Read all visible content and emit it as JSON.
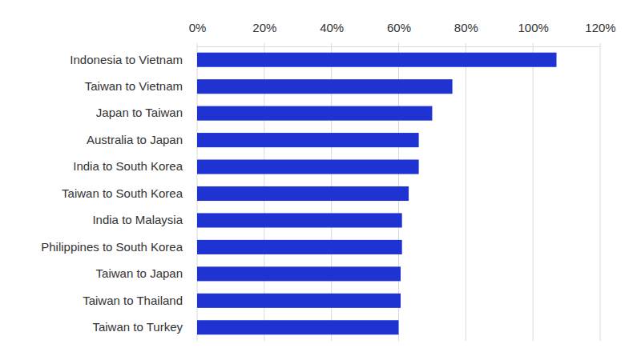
{
  "chart_data": {
    "type": "bar",
    "orientation": "horizontal",
    "grid": true,
    "color": "#1f33d3",
    "categories": [
      "Indonesia to Vietnam",
      "Taiwan to Vietnam",
      "Japan to Taiwan",
      "Australia to Japan",
      "India to South Korea",
      "Taiwan to South Korea",
      "India to Malaysia",
      "Philippines to South Korea",
      "Taiwan to Japan",
      "Taiwan to Thailand",
      "Taiwan to Turkey"
    ],
    "values": [
      107,
      76,
      70,
      66,
      66,
      63,
      61,
      61,
      60.6,
      60.6,
      60
    ],
    "xlim": [
      0,
      120
    ],
    "xticks": [
      {
        "value": 0,
        "label": "0%"
      },
      {
        "value": 20,
        "label": "20%"
      },
      {
        "value": 40,
        "label": "40%"
      },
      {
        "value": 60,
        "label": "60%"
      },
      {
        "value": 80,
        "label": "80%"
      },
      {
        "value": 100,
        "label": "100%"
      },
      {
        "value": 120,
        "label": "120%"
      }
    ]
  }
}
